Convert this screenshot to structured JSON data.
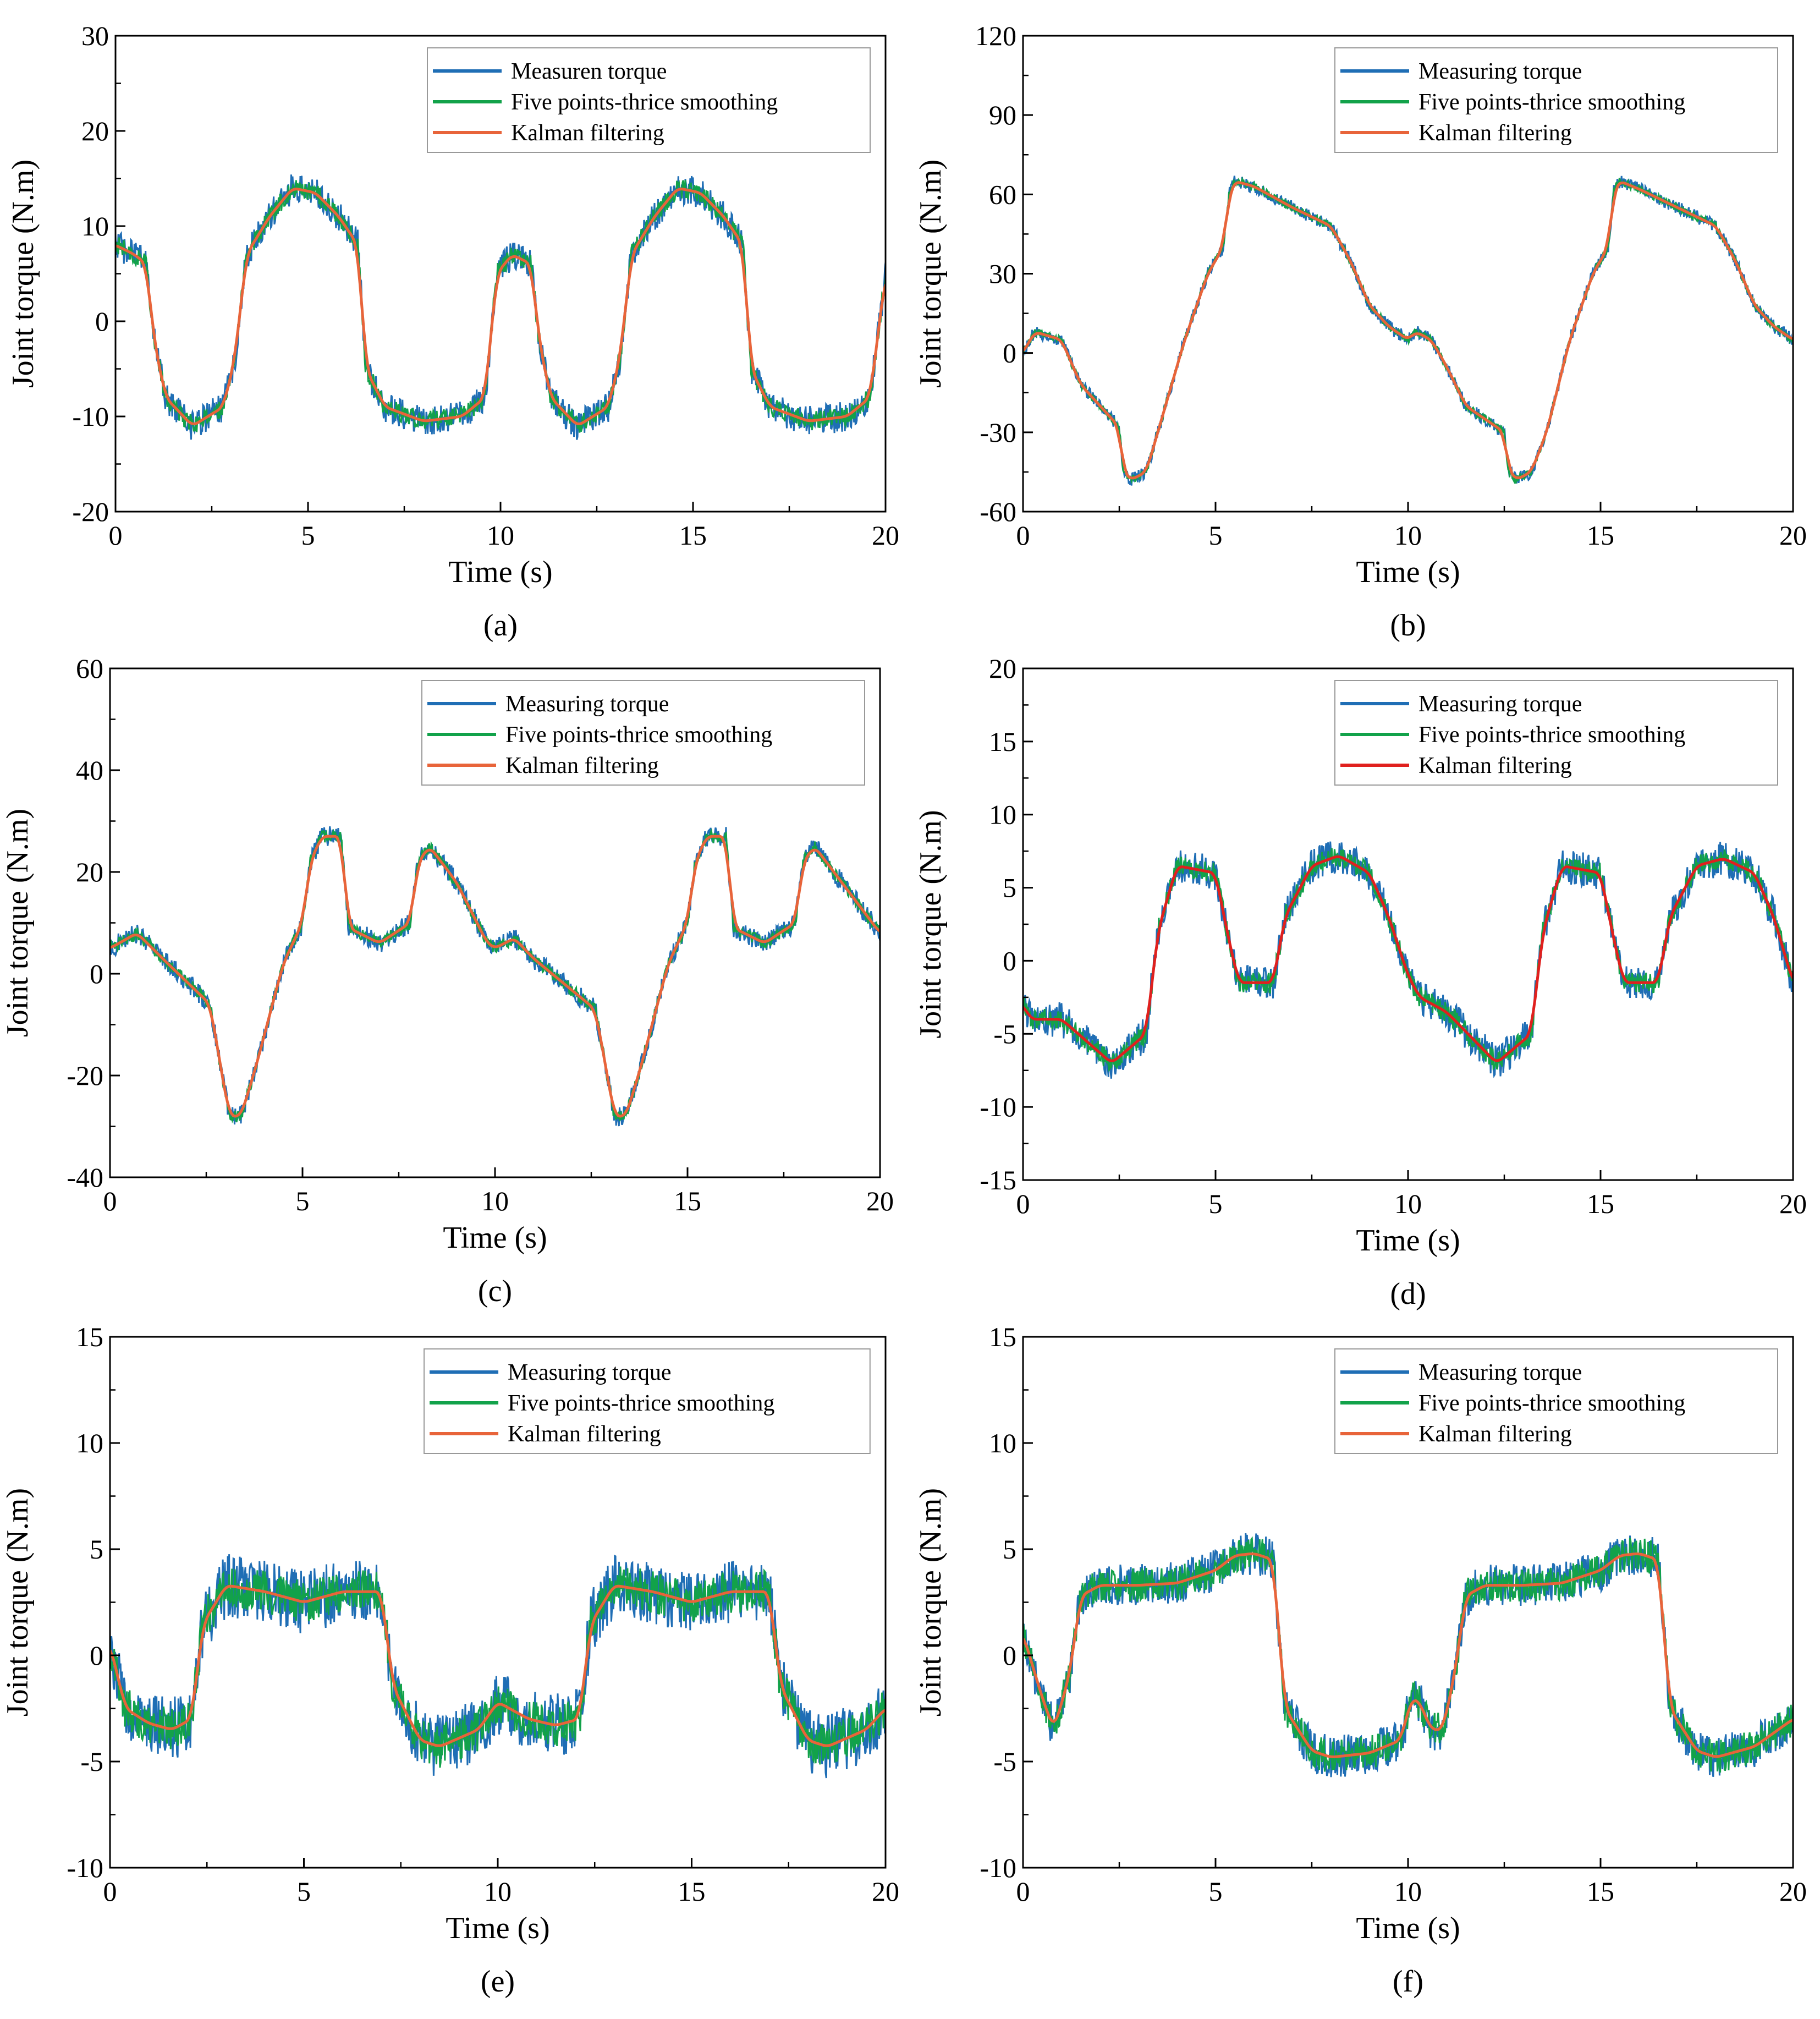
{
  "colors": {
    "measuring": "#1f6eb5",
    "smoothing": "#12a24a",
    "kalman": "#e8643a",
    "kalman_red": "#e0201e"
  },
  "chart_data": [
    {
      "panel": "(a)",
      "type": "line",
      "xlabel": "Time (s)",
      "ylabel": "Joint torque (N.m)",
      "xlim": [
        0,
        20
      ],
      "ylim": [
        -20,
        30
      ],
      "xticks": [
        0,
        5,
        10,
        15,
        20
      ],
      "yticks": [
        -20,
        -10,
        0,
        10,
        20,
        30
      ],
      "kalman_color": "kalman",
      "noise_measuring": 1.6,
      "noise_smoothing": 1.0,
      "legend": [
        "Measuren torque",
        "Five points-thrice smoothing",
        "Kalman filtering"
      ],
      "series": [
        {
          "name": "Kalman filtering",
          "x": [
            0,
            0.5,
            0.8,
            1.0,
            1.3,
            2,
            2.8,
            3.1,
            3.4,
            4,
            4.6,
            5.2,
            5.8,
            6.3,
            6.5,
            7,
            8,
            9,
            9.6,
            9.9,
            10.3,
            10.8,
            11,
            11.3,
            12,
            12.8,
            13.1,
            13.4,
            14,
            14.6,
            15.2,
            15.8,
            16.3,
            16.5,
            17,
            18,
            19,
            19.6,
            20
          ],
          "y": [
            8,
            7,
            6,
            -2,
            -8,
            -11,
            -9,
            -4,
            7,
            11,
            14,
            13.5,
            11,
            8,
            -5,
            -9,
            -10.5,
            -10,
            -8,
            5,
            7,
            6,
            -2,
            -8,
            -11,
            -9,
            -4,
            7,
            11,
            14,
            13.5,
            11,
            8,
            -5,
            -9,
            -10.5,
            -10,
            -8,
            5
          ]
        }
      ]
    },
    {
      "panel": "(b)",
      "type": "line",
      "xlabel": "Time (s)",
      "ylabel": "Joint torque (N.m)",
      "xlim": [
        0,
        20
      ],
      "ylim": [
        -60,
        120
      ],
      "xticks": [
        0,
        5,
        10,
        15,
        20
      ],
      "yticks": [
        -60,
        -30,
        0,
        30,
        60,
        90,
        120
      ],
      "kalman_color": "kalman",
      "noise_measuring": 2.5,
      "noise_smoothing": 1.5,
      "legend": [
        "Measuring torque",
        "Five points-thrice smoothing",
        "Kalman filtering"
      ],
      "series": [
        {
          "name": "Kalman filtering",
          "x": [
            0,
            0.3,
            1,
            1.5,
            2.5,
            2.6,
            2.8,
            3.2,
            3.6,
            4.2,
            4.8,
            5.2,
            5.35,
            5.5,
            6,
            7,
            8,
            8.5,
            9,
            9.5,
            10,
            10.2,
            10.6,
            11,
            11.5,
            12.5,
            12.6,
            12.8,
            13.2,
            13.6,
            14.2,
            14.8,
            15.2,
            15.35,
            15.5,
            16,
            17,
            18,
            18.5,
            19,
            19.5,
            20
          ],
          "y": [
            0,
            8,
            5,
            -12,
            -28,
            -45,
            -48,
            -45,
            -25,
            5,
            30,
            40,
            60,
            65,
            63,
            55,
            48,
            35,
            18,
            10,
            5,
            8,
            5,
            -5,
            -20,
            -30,
            -44,
            -48,
            -45,
            -30,
            5,
            30,
            40,
            62,
            65,
            62,
            55,
            48,
            35,
            18,
            10,
            5
          ]
        }
      ]
    },
    {
      "panel": "(c)",
      "type": "line",
      "xlabel": "Time (s)",
      "ylabel": "Joint torque (N.m)",
      "xlim": [
        0,
        20
      ],
      "ylim": [
        -40,
        60
      ],
      "xticks": [
        0,
        5,
        10,
        15,
        20
      ],
      "yticks": [
        -40,
        -20,
        0,
        20,
        40,
        60
      ],
      "kalman_color": "kalman",
      "noise_measuring": 2.0,
      "noise_smoothing": 1.2,
      "legend": [
        "Measuring torque",
        "Five points-thrice smoothing",
        "Kalman filtering"
      ],
      "series": [
        {
          "name": "Kalman filtering",
          "x": [
            0,
            0.7,
            1.5,
            2.6,
            2.8,
            3.1,
            3.4,
            3.8,
            4.5,
            5.0,
            5.2,
            5.5,
            6,
            6.2,
            7,
            7.8,
            8,
            8.3,
            9,
            9.8,
            10.0,
            10.5,
            11,
            12.6,
            12.8,
            13.1,
            13.4,
            13.8,
            14.5,
            15,
            15.2,
            15.5,
            16,
            16.2,
            17,
            17.8,
            18,
            18.3,
            19,
            20
          ],
          "y": [
            5,
            8,
            2,
            -6,
            -15,
            -28,
            -28,
            -18,
            2,
            10,
            22,
            27,
            27,
            9,
            6,
            10,
            22,
            25,
            18,
            6,
            5,
            7,
            3,
            -7,
            -15,
            -28,
            -28,
            -18,
            2,
            10,
            22,
            27,
            27,
            9,
            6,
            10,
            22,
            25,
            18,
            8
          ]
        }
      ]
    },
    {
      "panel": "(d)",
      "type": "line",
      "xlabel": "Time (s)",
      "ylabel": "Joint torque (N.m)",
      "xlim": [
        0,
        20
      ],
      "ylim": [
        -15,
        20
      ],
      "xticks": [
        0,
        5,
        10,
        15,
        20
      ],
      "yticks": [
        -15,
        -10,
        -5,
        0,
        5,
        10,
        15,
        20
      ],
      "kalman_color": "kalman_red",
      "noise_measuring": 1.2,
      "noise_smoothing": 0.7,
      "legend": [
        "Measuring torque",
        "Five points-thrice smoothing",
        "Kalman filtering"
      ],
      "series": [
        {
          "name": "Kalman filtering",
          "x": [
            0,
            0.2,
            1,
            2.3,
            3.2,
            3.5,
            4,
            5,
            5.3,
            5.6,
            6.5,
            6.8,
            7.5,
            8.2,
            9,
            9.5,
            10,
            10.3,
            11,
            12.3,
            13.2,
            13.5,
            14,
            15,
            15.3,
            15.6,
            16.5,
            16.8,
            17.5,
            18.2,
            19,
            19.5,
            20
          ],
          "y": [
            -3,
            -4,
            -4,
            -7,
            -5,
            2,
            6.5,
            6,
            2,
            -1.5,
            -1.5,
            3,
            6.5,
            7.2,
            6,
            3,
            -1,
            -2.5,
            -3.5,
            -7,
            -5,
            2,
            6.5,
            6,
            2,
            -1.5,
            -1.5,
            3,
            6.5,
            7,
            6,
            3,
            -1.5
          ]
        }
      ]
    },
    {
      "panel": "(e)",
      "type": "line",
      "xlabel": "Time (s)",
      "ylabel": "Joint torque (N.m)",
      "xlim": [
        0,
        20
      ],
      "ylim": [
        -10,
        15
      ],
      "xticks": [
        0,
        5,
        10,
        15,
        20
      ],
      "yticks": [
        -10,
        -5,
        0,
        5,
        10,
        15
      ],
      "kalman_color": "kalman",
      "noise_measuring": 1.5,
      "noise_smoothing": 1.0,
      "legend": [
        "Measuring torque",
        "Five points-thrice smoothing",
        "Kalman filtering"
      ],
      "series": [
        {
          "name": "Kalman filtering",
          "x": [
            0,
            0.4,
            1,
            1.6,
            2.1,
            2.4,
            3,
            4,
            5,
            6,
            7,
            7.3,
            8,
            8.5,
            9.5,
            10,
            10.3,
            10.8,
            11.5,
            12.1,
            12.4,
            13,
            14,
            15,
            16,
            17,
            17.3,
            18,
            18.5,
            19.5,
            20
          ],
          "y": [
            0.5,
            -2.5,
            -3.2,
            -3.5,
            -3,
            1.5,
            3.3,
            3,
            2.5,
            3,
            3,
            -1.5,
            -4,
            -4.3,
            -3.5,
            -2.2,
            -2.5,
            -3,
            -3.3,
            -3,
            1.5,
            3.3,
            3,
            2.5,
            3,
            3,
            -1.5,
            -4,
            -4.3,
            -3.5,
            -2.5
          ]
        }
      ]
    },
    {
      "panel": "(f)",
      "type": "line",
      "xlabel": "Time (s)",
      "ylabel": "Joint torque (N.m)",
      "xlim": [
        0,
        20
      ],
      "ylim": [
        -10,
        15
      ],
      "xticks": [
        0,
        5,
        10,
        15,
        20
      ],
      "yticks": [
        -10,
        -5,
        0,
        5,
        10,
        15
      ],
      "kalman_color": "kalman",
      "noise_measuring": 1.0,
      "noise_smoothing": 0.8,
      "legend": [
        "Measuring torque",
        "Five points-thrice smoothing",
        "Kalman filtering"
      ],
      "series": [
        {
          "name": "Kalman filtering",
          "x": [
            0,
            0.5,
            0.8,
            1.2,
            1.5,
            2,
            3,
            4,
            5,
            5.5,
            6,
            6.5,
            6.8,
            7.5,
            8,
            9,
            9.8,
            10.1,
            10.3,
            10.6,
            10.9,
            11.2,
            11.5,
            12,
            13,
            14,
            15,
            15.5,
            16,
            16.5,
            16.8,
            17.5,
            18,
            19,
            20
          ],
          "y": [
            1,
            -2,
            -3.5,
            -1,
            2.8,
            3.3,
            3.3,
            3.4,
            4,
            4.7,
            4.8,
            4.5,
            -2.5,
            -4.5,
            -4.8,
            -4.6,
            -4,
            -2,
            -2.2,
            -3.5,
            -3.5,
            -1,
            2.8,
            3.3,
            3.3,
            3.4,
            4,
            4.7,
            4.8,
            4.5,
            -2.5,
            -4.5,
            -4.8,
            -4.3,
            -3
          ]
        }
      ]
    }
  ]
}
